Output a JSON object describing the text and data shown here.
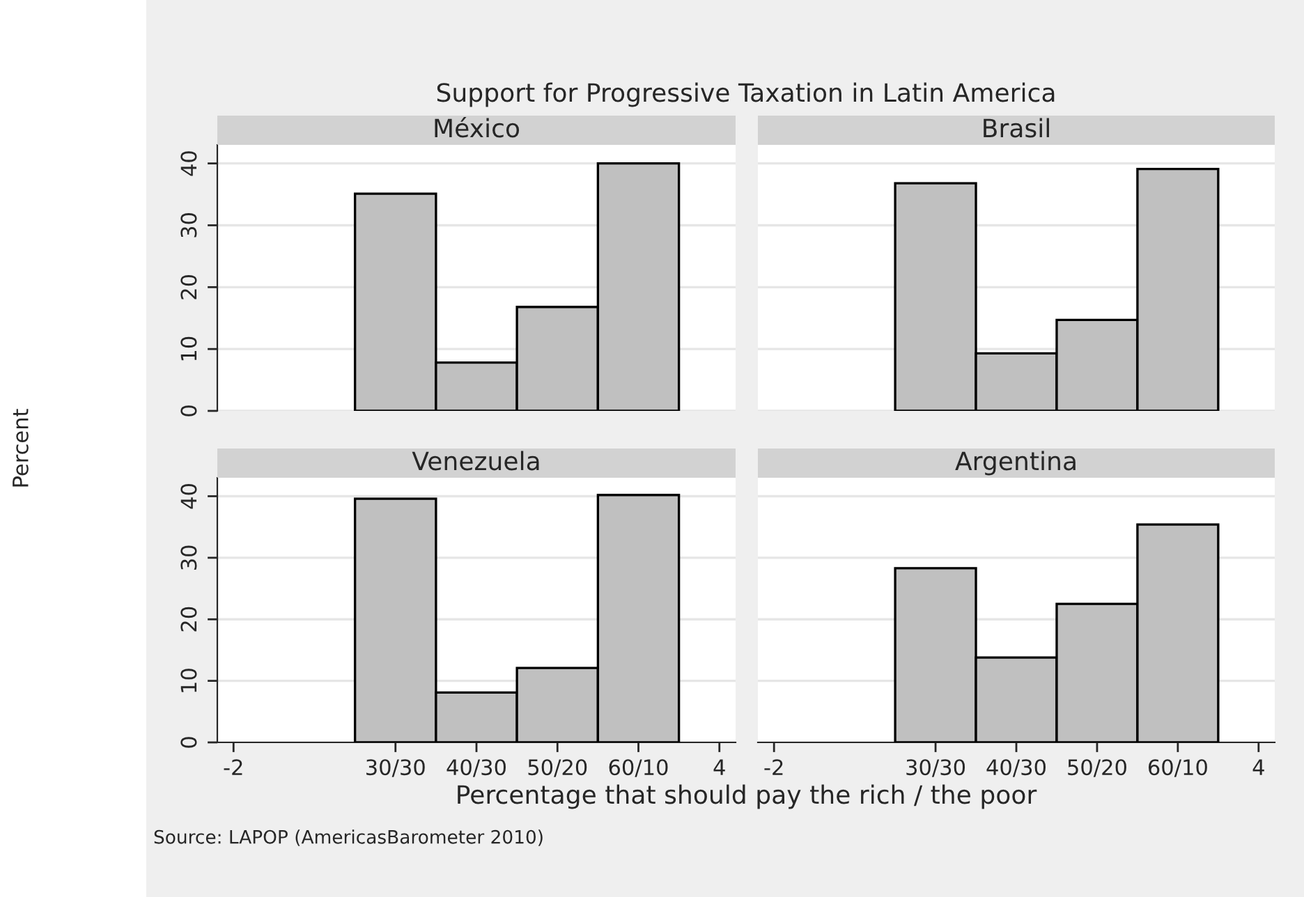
{
  "chart_data": [
    {
      "type": "histogram",
      "title": "México",
      "bins": [
        -0.5,
        0.5,
        1.5,
        2.5,
        3.5
      ],
      "values": [
        35.1,
        7.8,
        16.8,
        40
      ],
      "color": "#c0c0c0",
      "xlim": [
        -2.2,
        4.2
      ],
      "ylim": [
        0,
        43
      ],
      "yticks": [
        0,
        10,
        20,
        30,
        40
      ],
      "grid": "y",
      "tick_labels": "y",
      "xlabel": "Percentage that should pay the rich / the poor",
      "ylabel": "Percent",
      "annotations": [
        "Support for Progressive Taxation in Latin America",
        "Source: LAPOP (AmericasBarometer 2010)"
      ]
    },
    {
      "type": "histogram",
      "title": "Brasil",
      "bins": [
        -0.5,
        0.5,
        1.5,
        2.5,
        3.5
      ],
      "values": [
        36.8,
        9.3,
        14.7,
        39.1
      ],
      "color": "#c0c0c0",
      "xlim": [
        -2.2,
        4.2
      ],
      "ylim": [
        0,
        43
      ],
      "yticks": [
        0,
        10,
        20,
        30,
        40
      ],
      "grid": "y",
      "tick_labels": false
    },
    {
      "type": "histogram",
      "title": "Venezuela",
      "bins": [
        -0.5,
        0.5,
        1.5,
        2.5,
        3.5
      ],
      "values": [
        39.6,
        8.1,
        12.1,
        40.2
      ],
      "color": "#c0c0c0",
      "xlim": [
        -2.2,
        4.2
      ],
      "xticks": [
        -2,
        {
          "value": 0,
          "label": "30/30"
        },
        {
          "value": 1,
          "label": "40/30"
        },
        {
          "value": 2,
          "label": "50/20"
        },
        {
          "value": 3,
          "label": "60/10"
        },
        4
      ],
      "ylim": [
        0,
        43
      ],
      "yticks": [
        0,
        10,
        20,
        30,
        40
      ],
      "grid": "y"
    },
    {
      "type": "histogram",
      "title": "Argentina",
      "bins": [
        -0.5,
        0.5,
        1.5,
        2.5,
        3.5
      ],
      "values": [
        28.3,
        13.8,
        22.5,
        35.4
      ],
      "color": "#c0c0c0",
      "xlim": [
        -2.2,
        4.2
      ],
      "xticks": [
        -2,
        {
          "value": 0,
          "label": "30/30"
        },
        {
          "value": 1,
          "label": "40/30"
        },
        {
          "value": 2,
          "label": "50/20"
        },
        {
          "value": 3,
          "label": "60/10"
        },
        4
      ],
      "ylim": [
        0,
        43
      ],
      "yticks": [
        0,
        10,
        20,
        30,
        40
      ],
      "grid": "y",
      "tick_labels": "x"
    }
  ]
}
